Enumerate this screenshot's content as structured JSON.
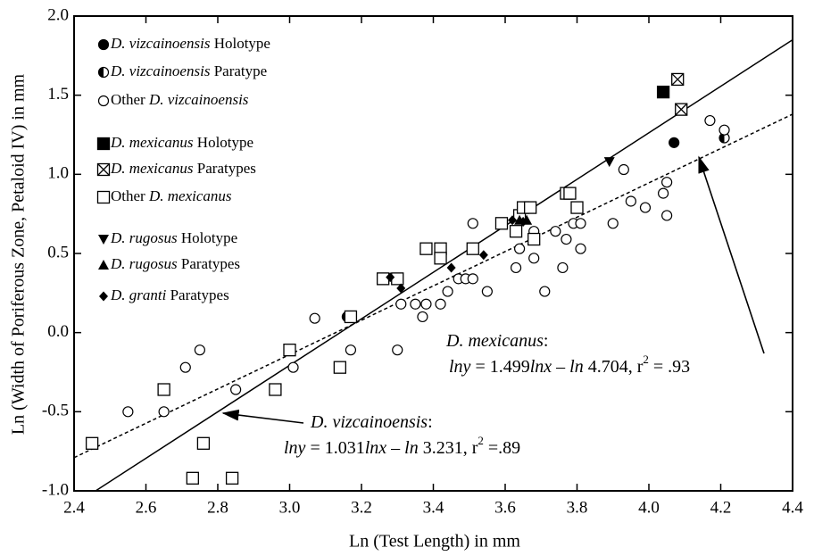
{
  "chart_data": {
    "type": "scatter",
    "xlabel": "Ln (Test Length) in mm",
    "ylabel": "Ln (Width of Poriferous Zone, Petaloid IV) in mm",
    "xlim": [
      2.4,
      4.4
    ],
    "ylim": [
      -1.0,
      2.0
    ],
    "xticks": [
      2.4,
      2.6,
      2.8,
      {
        "value": 3.0,
        "label": "3.0"
      },
      3.2,
      3.4,
      3.6,
      3.8,
      {
        "value": 4.0,
        "label": "4.0"
      },
      4.2,
      4.4
    ],
    "yticks": [
      {
        "value": 2.0,
        "label": "2.0"
      },
      1.5,
      {
        "value": 1.0,
        "label": "1.0"
      },
      0.5,
      {
        "value": 0.0,
        "label": "0.0"
      },
      -0.5,
      {
        "value": -1.0,
        "label": "-1.0"
      }
    ],
    "series": [
      {
        "name": "D. vizcainoensis Holotype",
        "marker": "circle-filled",
        "x": [
          4.07
        ],
        "y": [
          1.2
        ]
      },
      {
        "name": "D. vizcainoensis Paratype",
        "marker": "circle-half",
        "x": [
          4.21,
          3.16
        ],
        "y": [
          1.23,
          0.1
        ]
      },
      {
        "name": "Other D. vizcainoensis",
        "marker": "circle-open",
        "x": [
          2.55,
          2.65,
          2.71,
          2.75,
          2.85,
          3.01,
          3.07,
          3.17,
          3.3,
          3.31,
          3.35,
          3.37,
          3.38,
          3.42,
          3.44,
          3.47,
          3.49,
          3.51,
          3.51,
          3.55,
          3.63,
          3.64,
          3.68,
          3.68,
          3.71,
          3.74,
          3.76,
          3.77,
          3.79,
          3.8,
          3.81,
          3.81,
          3.9,
          3.93,
          3.95,
          3.99,
          4.04,
          4.05,
          4.05,
          4.17,
          4.21
        ],
        "y": [
          -0.5,
          -0.5,
          -0.22,
          -0.11,
          -0.36,
          -0.22,
          0.09,
          -0.11,
          -0.11,
          0.18,
          0.18,
          0.1,
          0.18,
          0.18,
          0.26,
          0.34,
          0.34,
          0.34,
          0.69,
          0.26,
          0.41,
          0.53,
          0.47,
          0.64,
          0.26,
          0.64,
          0.41,
          0.59,
          0.69,
          0.79,
          0.69,
          0.53,
          0.69,
          1.03,
          0.83,
          0.79,
          0.88,
          0.74,
          0.95,
          1.34,
          1.28
        ]
      },
      {
        "name": "D. mexicanus Holotype",
        "marker": "square-filled",
        "x": [
          4.04
        ],
        "y": [
          1.52
        ]
      },
      {
        "name": "D. mexicanus Paratypes",
        "marker": "square-cross",
        "x": [
          4.08,
          4.09
        ],
        "y": [
          1.6,
          1.41
        ]
      },
      {
        "name": "Other D. mexicanus",
        "marker": "square-open",
        "x": [
          2.45,
          2.65,
          2.73,
          2.76,
          2.84,
          2.96,
          3.0,
          3.14,
          3.17,
          3.26,
          3.3,
          3.38,
          3.42,
          3.42,
          3.51,
          3.59,
          3.63,
          3.64,
          3.65,
          3.67,
          3.68,
          3.77,
          3.78,
          3.8
        ],
        "y": [
          -0.7,
          -0.36,
          -0.92,
          -0.7,
          -0.92,
          -0.36,
          -0.11,
          -0.22,
          0.1,
          0.34,
          0.34,
          0.53,
          0.53,
          0.47,
          0.53,
          0.69,
          0.64,
          0.74,
          0.79,
          0.79,
          0.59,
          0.88,
          0.88,
          0.79
        ]
      },
      {
        "name": "D. rugosus Holotype",
        "marker": "triangle-down",
        "x": [
          3.89
        ],
        "y": [
          1.08
        ]
      },
      {
        "name": "D. rugosus Paratypes",
        "marker": "triangle-up",
        "x": [
          3.64,
          3.66
        ],
        "y": [
          0.71,
          0.71
        ]
      },
      {
        "name": "D. granti Paratypes",
        "marker": "diamond",
        "x": [
          3.28,
          3.31,
          3.45,
          3.54,
          3.62,
          3.65
        ],
        "y": [
          0.35,
          0.28,
          0.41,
          0.49,
          0.71,
          0.7
        ]
      }
    ],
    "fit_lines": [
      {
        "dash": false,
        "x": [
          2.46,
          4.4
        ],
        "y": [
          -1.0,
          1.85
        ]
      },
      {
        "dash": true,
        "x": [
          2.4,
          4.4
        ],
        "y": [
          -0.79,
          1.38
        ]
      }
    ],
    "annotations": [
      {
        "lines": [
          [
            {
              "text": "D. mexicanus",
              "italic": true
            },
            {
              "text": ":"
            }
          ],
          [
            {
              "text": "lny",
              "italic": true
            },
            {
              "text": " = 1.499"
            },
            {
              "text": "lnx",
              "italic": true
            },
            {
              "text": "  – "
            },
            {
              "text": "ln",
              "italic": true
            },
            {
              "text": " 4.704, r"
            },
            {
              "text": "2",
              "sup": true
            },
            {
              "text": " = .93"
            }
          ]
        ]
      },
      {
        "lines": [
          [
            {
              "text": "D. vizcainoensis",
              "italic": true
            },
            {
              "text": ":"
            }
          ],
          [
            {
              "text": "lny",
              "italic": true
            },
            {
              "text": " = 1.031"
            },
            {
              "text": "lnx",
              "italic": true
            },
            {
              "text": " – "
            },
            {
              "text": "ln",
              "italic": true
            },
            {
              "text": " 3.231, r"
            },
            {
              "text": "2",
              "sup": true
            },
            {
              "text": " =.89"
            }
          ]
        ]
      }
    ]
  }
}
